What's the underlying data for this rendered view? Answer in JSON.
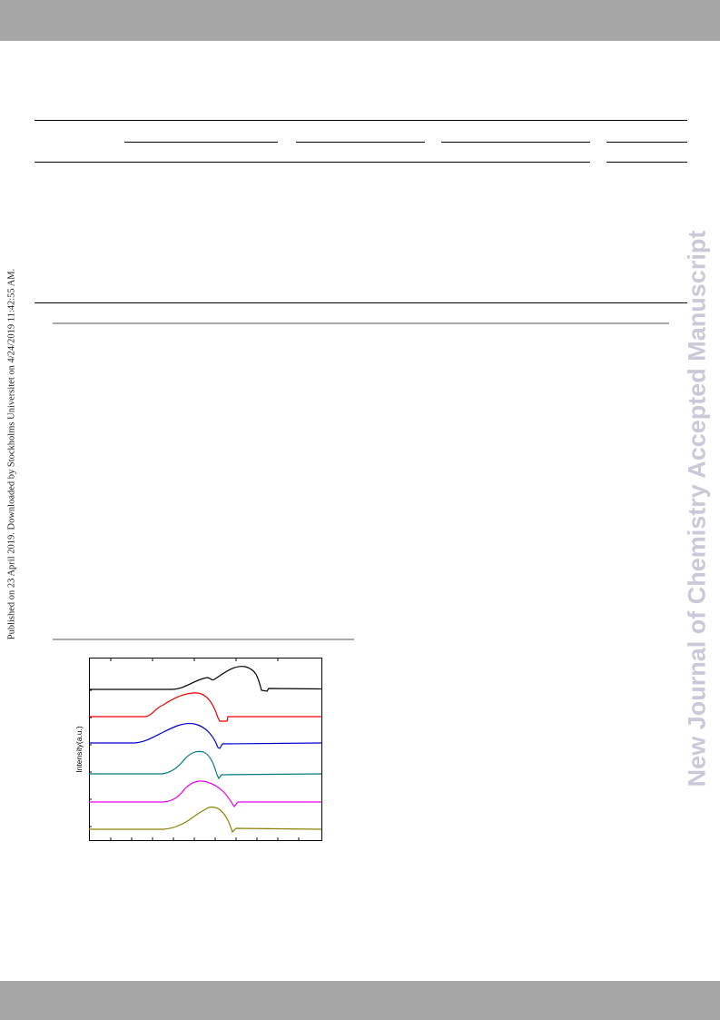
{
  "side_note": "Published on 23 April 2019. Downloaded by Stockholms Universitet on 4/24/2019 11:42:55 AM.",
  "watermark": "New Journal of Chemistry Accepted Manuscript",
  "figure": {
    "y_label": "Intensity(a.u.)"
  }
}
